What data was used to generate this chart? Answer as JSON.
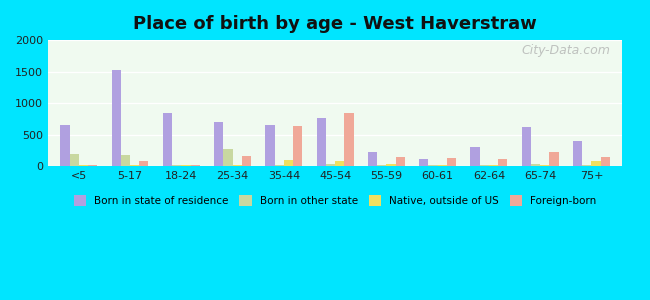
{
  "title": "Place of birth by age - West Haverstraw",
  "categories": [
    "<5",
    "5-17",
    "18-24",
    "25-34",
    "35-44",
    "45-54",
    "55-59",
    "60-61",
    "62-64",
    "65-74",
    "75+"
  ],
  "series": {
    "Born in state of residence": [
      650,
      1520,
      840,
      700,
      660,
      760,
      230,
      120,
      300,
      620,
      400
    ],
    "Born in other state": [
      190,
      175,
      30,
      280,
      30,
      40,
      30,
      30,
      30,
      40,
      30
    ],
    "Native, outside of US": [
      20,
      20,
      20,
      30,
      100,
      90,
      40,
      30,
      30,
      30,
      80
    ],
    "Foreign-born": [
      20,
      80,
      20,
      170,
      640,
      840,
      150,
      130,
      120,
      230,
      150
    ]
  },
  "colors": {
    "Born in state of residence": "#b0a0e0",
    "Born in other state": "#c8d8a0",
    "Native, outside of US": "#f0e060",
    "Foreign-born": "#f0a898"
  },
  "ylim": [
    0,
    2000
  ],
  "yticks": [
    0,
    500,
    1000,
    1500,
    2000
  ],
  "background_color": "#f0faf0",
  "outer_background": "#00e5ff",
  "grid_color": "#ffffff",
  "watermark": "City-Data.com"
}
